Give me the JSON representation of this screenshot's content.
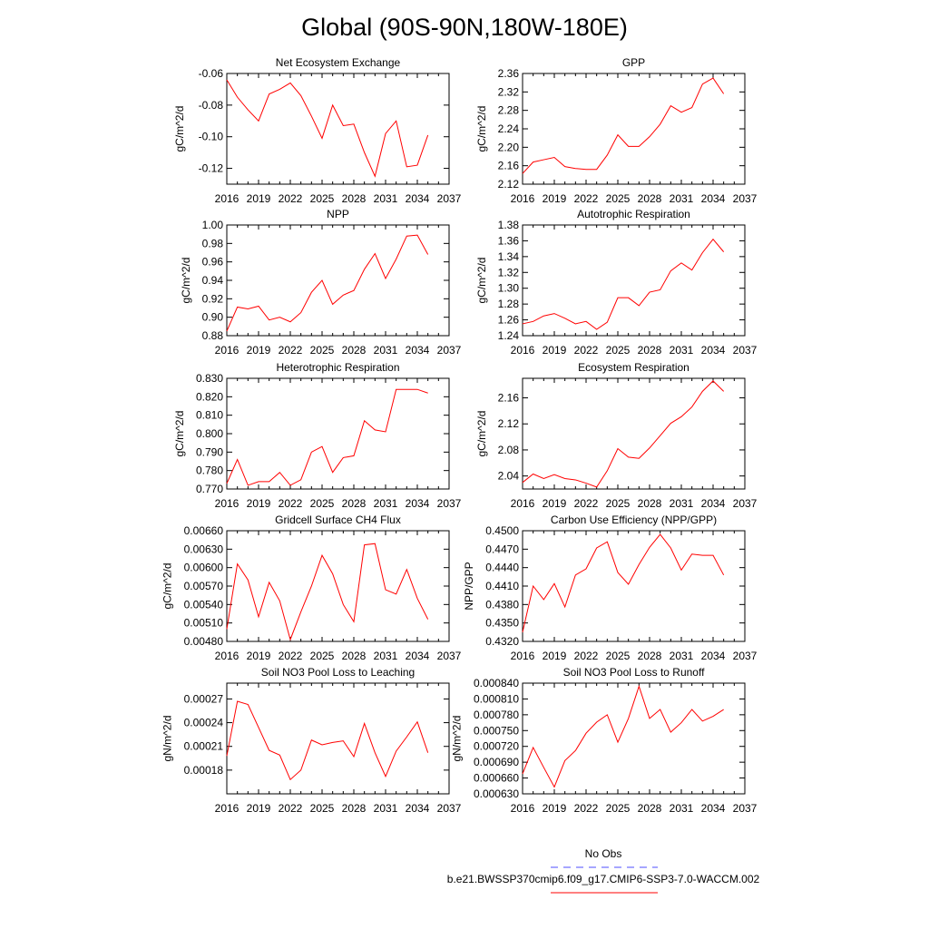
{
  "figure_title": "Global (90S-90N,180W-180E)",
  "legend": {
    "obs_label": "No Obs",
    "obs_color": "#4d4dff",
    "model_label": "b.e21.BWSSP370cmip6.f09_g17.CMIP6-SSP3-7.0-WACCM.002",
    "model_color": "#ff0000"
  },
  "chart_data": [
    {
      "type": "line",
      "title": "Net Ecosystem Exchange",
      "ylabel": "gC/m^2/d",
      "xlim": [
        2016,
        2037
      ],
      "xticks": [
        "2016",
        "2019",
        "2022",
        "2025",
        "2028",
        "2031",
        "2034",
        "2037"
      ],
      "ylim": [
        -0.13,
        -0.06
      ],
      "yticks": [
        "-0.06",
        "-0.08",
        "-0.10",
        "-0.12"
      ],
      "yticks_values": [
        -0.06,
        -0.08,
        -0.1,
        -0.12
      ],
      "x": [
        2016,
        2017,
        2018,
        2019,
        2020,
        2021,
        2022,
        2023,
        2024,
        2025,
        2026,
        2027,
        2028,
        2029,
        2030,
        2031,
        2032,
        2033,
        2034,
        2035
      ],
      "series": [
        {
          "values": [
            -0.064,
            -0.075,
            -0.083,
            -0.09,
            -0.073,
            -0.07,
            -0.066,
            -0.074,
            -0.087,
            -0.101,
            -0.08,
            -0.093,
            -0.092,
            -0.11,
            -0.125,
            -0.098,
            -0.09,
            -0.119,
            -0.118,
            -0.099
          ],
          "color": "#ff0000"
        }
      ]
    },
    {
      "type": "line",
      "title": "GPP",
      "ylabel": "gC/m^2/d",
      "xlim": [
        2016,
        2037
      ],
      "xticks": [
        "2016",
        "2019",
        "2022",
        "2025",
        "2028",
        "2031",
        "2034",
        "2037"
      ],
      "ylim": [
        2.12,
        2.36
      ],
      "yticks": [
        "2.12",
        "2.16",
        "2.20",
        "2.24",
        "2.28",
        "2.32",
        "2.36"
      ],
      "yticks_values": [
        2.12,
        2.16,
        2.2,
        2.24,
        2.28,
        2.32,
        2.36
      ],
      "x": [
        2016,
        2017,
        2018,
        2019,
        2020,
        2021,
        2022,
        2023,
        2024,
        2025,
        2026,
        2027,
        2028,
        2029,
        2030,
        2031,
        2032,
        2033,
        2034,
        2035
      ],
      "series": [
        {
          "values": [
            2.143,
            2.168,
            2.173,
            2.178,
            2.158,
            2.154,
            2.152,
            2.152,
            2.183,
            2.227,
            2.202,
            2.202,
            2.223,
            2.25,
            2.29,
            2.276,
            2.286,
            2.337,
            2.35,
            2.316
          ],
          "color": "#ff0000"
        }
      ]
    },
    {
      "type": "line",
      "title": "NPP",
      "ylabel": "gC/m^2/d",
      "xlim": [
        2016,
        2037
      ],
      "xticks": [
        "2016",
        "2019",
        "2022",
        "2025",
        "2028",
        "2031",
        "2034",
        "2037"
      ],
      "ylim": [
        0.88,
        1.0
      ],
      "yticks": [
        "0.88",
        "0.90",
        "0.92",
        "0.94",
        "0.96",
        "0.98",
        "1.00"
      ],
      "yticks_values": [
        0.88,
        0.9,
        0.92,
        0.94,
        0.96,
        0.98,
        1.0
      ],
      "x": [
        2016,
        2017,
        2018,
        2019,
        2020,
        2021,
        2022,
        2023,
        2024,
        2025,
        2026,
        2027,
        2028,
        2029,
        2030,
        2031,
        2032,
        2033,
        2034,
        2035
      ],
      "series": [
        {
          "values": [
            0.885,
            0.911,
            0.909,
            0.912,
            0.897,
            0.9,
            0.895,
            0.905,
            0.927,
            0.94,
            0.914,
            0.924,
            0.929,
            0.952,
            0.969,
            0.942,
            0.963,
            0.988,
            0.989,
            0.968
          ],
          "color": "#ff0000"
        }
      ]
    },
    {
      "type": "line",
      "title": "Autotrophic Respiration",
      "ylabel": "gC/m^2/d",
      "xlim": [
        2016,
        2037
      ],
      "xticks": [
        "2016",
        "2019",
        "2022",
        "2025",
        "2028",
        "2031",
        "2034",
        "2037"
      ],
      "ylim": [
        1.24,
        1.38
      ],
      "yticks": [
        "1.24",
        "1.26",
        "1.28",
        "1.30",
        "1.32",
        "1.34",
        "1.36",
        "1.38"
      ],
      "yticks_values": [
        1.24,
        1.26,
        1.28,
        1.3,
        1.32,
        1.34,
        1.36,
        1.38
      ],
      "x": [
        2016,
        2017,
        2018,
        2019,
        2020,
        2021,
        2022,
        2023,
        2024,
        2025,
        2026,
        2027,
        2028,
        2029,
        2030,
        2031,
        2032,
        2033,
        2034,
        2035
      ],
      "series": [
        {
          "values": [
            1.255,
            1.258,
            1.265,
            1.268,
            1.262,
            1.255,
            1.258,
            1.248,
            1.257,
            1.288,
            1.288,
            1.278,
            1.295,
            1.298,
            1.322,
            1.332,
            1.323,
            1.345,
            1.362,
            1.346
          ],
          "color": "#ff0000"
        }
      ]
    },
    {
      "type": "line",
      "title": "Heterotrophic Respiration",
      "ylabel": "gC/m^2/d",
      "xlim": [
        2016,
        2037
      ],
      "xticks": [
        "2016",
        "2019",
        "2022",
        "2025",
        "2028",
        "2031",
        "2034",
        "2037"
      ],
      "ylim": [
        0.77,
        0.83
      ],
      "yticks": [
        "0.770",
        "0.780",
        "0.790",
        "0.800",
        "0.810",
        "0.820",
        "0.830"
      ],
      "yticks_values": [
        0.77,
        0.78,
        0.79,
        0.8,
        0.81,
        0.82,
        0.83
      ],
      "x": [
        2016,
        2017,
        2018,
        2019,
        2020,
        2021,
        2022,
        2023,
        2024,
        2025,
        2026,
        2027,
        2028,
        2029,
        2030,
        2031,
        2032,
        2033,
        2034,
        2035
      ],
      "series": [
        {
          "values": [
            0.773,
            0.786,
            0.772,
            0.774,
            0.774,
            0.779,
            0.772,
            0.775,
            0.79,
            0.793,
            0.779,
            0.787,
            0.788,
            0.807,
            0.802,
            0.801,
            0.824,
            0.824,
            0.824,
            0.822
          ],
          "color": "#ff0000"
        }
      ]
    },
    {
      "type": "line",
      "title": "Ecosystem Respiration",
      "ylabel": "gC/m^2/d",
      "xlim": [
        2016,
        2037
      ],
      "xticks": [
        "2016",
        "2019",
        "2022",
        "2025",
        "2028",
        "2031",
        "2034",
        "2037"
      ],
      "ylim": [
        2.02,
        2.19
      ],
      "yticks": [
        "2.04",
        "2.08",
        "2.12",
        "2.16"
      ],
      "yticks_values": [
        2.04,
        2.08,
        2.12,
        2.16
      ],
      "x": [
        2016,
        2017,
        2018,
        2019,
        2020,
        2021,
        2022,
        2023,
        2024,
        2025,
        2026,
        2027,
        2028,
        2029,
        2030,
        2031,
        2032,
        2033,
        2034,
        2035
      ],
      "series": [
        {
          "values": [
            2.03,
            2.043,
            2.036,
            2.042,
            2.036,
            2.034,
            2.029,
            2.023,
            2.048,
            2.082,
            2.069,
            2.067,
            2.083,
            2.102,
            2.121,
            2.131,
            2.146,
            2.17,
            2.186,
            2.17
          ],
          "color": "#ff0000"
        }
      ]
    },
    {
      "type": "line",
      "title": "Gridcell Surface CH4 Flux",
      "ylabel": "gC/m^2/d",
      "xlim": [
        2016,
        2037
      ],
      "xticks": [
        "2016",
        "2019",
        "2022",
        "2025",
        "2028",
        "2031",
        "2034",
        "2037"
      ],
      "ylim": [
        0.0048,
        0.0066
      ],
      "yticks": [
        "0.00480",
        "0.00510",
        "0.00540",
        "0.00570",
        "0.00600",
        "0.00630",
        "0.00660"
      ],
      "yticks_values": [
        0.0048,
        0.0051,
        0.0054,
        0.0057,
        0.006,
        0.0063,
        0.0066
      ],
      "x": [
        2016,
        2017,
        2018,
        2019,
        2020,
        2021,
        2022,
        2023,
        2024,
        2025,
        2026,
        2027,
        2028,
        2029,
        2030,
        2031,
        2032,
        2033,
        2034,
        2035
      ],
      "series": [
        {
          "values": [
            0.005,
            0.00606,
            0.0058,
            0.0052,
            0.00576,
            0.00546,
            0.00483,
            0.00528,
            0.0057,
            0.0062,
            0.0059,
            0.0054,
            0.00512,
            0.00637,
            0.00639,
            0.00564,
            0.00557,
            0.00597,
            0.0055,
            0.00516
          ],
          "color": "#ff0000"
        }
      ]
    },
    {
      "type": "line",
      "title": "Carbon Use Efficiency (NPP/GPP)",
      "ylabel": "NPP/GPP",
      "xlim": [
        2016,
        2037
      ],
      "xticks": [
        "2016",
        "2019",
        "2022",
        "2025",
        "2028",
        "2031",
        "2034",
        "2037"
      ],
      "ylim": [
        0.432,
        0.45
      ],
      "yticks": [
        "0.4320",
        "0.4350",
        "0.4380",
        "0.4410",
        "0.4440",
        "0.4470",
        "0.4500"
      ],
      "yticks_values": [
        0.432,
        0.435,
        0.438,
        0.441,
        0.444,
        0.447,
        0.45
      ],
      "x": [
        2016,
        2017,
        2018,
        2019,
        2020,
        2021,
        2022,
        2023,
        2024,
        2025,
        2026,
        2027,
        2028,
        2029,
        2030,
        2031,
        2032,
        2033,
        2034,
        2035
      ],
      "series": [
        {
          "values": [
            0.4335,
            0.441,
            0.4388,
            0.4414,
            0.4376,
            0.4428,
            0.4438,
            0.4472,
            0.4482,
            0.4432,
            0.4413,
            0.4445,
            0.4473,
            0.4494,
            0.4472,
            0.4436,
            0.4462,
            0.446,
            0.446,
            0.4428
          ],
          "color": "#ff0000"
        }
      ]
    },
    {
      "type": "line",
      "title": "Soil NO3 Pool Loss to Leaching",
      "ylabel": "gN/m^2/d",
      "xlim": [
        2016,
        2037
      ],
      "xticks": [
        "2016",
        "2019",
        "2022",
        "2025",
        "2028",
        "2031",
        "2034",
        "2037"
      ],
      "ylim": [
        0.00015,
        0.00029
      ],
      "yticks": [
        "0.00018",
        "0.00021",
        "0.00024",
        "0.00027"
      ],
      "yticks_values": [
        0.00018,
        0.00021,
        0.00024,
        0.00027
      ],
      "x": [
        2016,
        2017,
        2018,
        2019,
        2020,
        2021,
        2022,
        2023,
        2024,
        2025,
        2026,
        2027,
        2028,
        2029,
        2030,
        2031,
        2032,
        2033,
        2034,
        2035
      ],
      "series": [
        {
          "values": [
            0.000198,
            0.000267,
            0.000263,
            0.000234,
            0.000205,
            0.000199,
            0.000168,
            0.00018,
            0.000218,
            0.000212,
            0.000215,
            0.000217,
            0.000197,
            0.000239,
            0.000202,
            0.000172,
            0.000204,
            0.000222,
            0.000241,
            0.000202
          ],
          "color": "#ff0000"
        }
      ]
    },
    {
      "type": "line",
      "title": "Soil NO3 Pool Loss to Runoff",
      "ylabel": "gN/m^2/d",
      "xlim": [
        2016,
        2037
      ],
      "xticks": [
        "2016",
        "2019",
        "2022",
        "2025",
        "2028",
        "2031",
        "2034",
        "2037"
      ],
      "ylim": [
        0.00063,
        0.00084
      ],
      "yticks": [
        "0.000630",
        "0.000660",
        "0.000690",
        "0.000720",
        "0.000750",
        "0.000780",
        "0.000810",
        "0.000840"
      ],
      "yticks_values": [
        0.00063,
        0.00066,
        0.00069,
        0.00072,
        0.00075,
        0.00078,
        0.00081,
        0.00084
      ],
      "x": [
        2016,
        2017,
        2018,
        2019,
        2020,
        2021,
        2022,
        2023,
        2024,
        2025,
        2026,
        2027,
        2028,
        2029,
        2030,
        2031,
        2032,
        2033,
        2034,
        2035
      ],
      "series": [
        {
          "values": [
            0.000668,
            0.000718,
            0.00068,
            0.000643,
            0.000693,
            0.000712,
            0.000745,
            0.000766,
            0.00078,
            0.000728,
            0.000773,
            0.000834,
            0.000773,
            0.00079,
            0.000747,
            0.000765,
            0.00079,
            0.000768,
            0.000777,
            0.00079
          ],
          "color": "#ff0000"
        }
      ]
    }
  ]
}
